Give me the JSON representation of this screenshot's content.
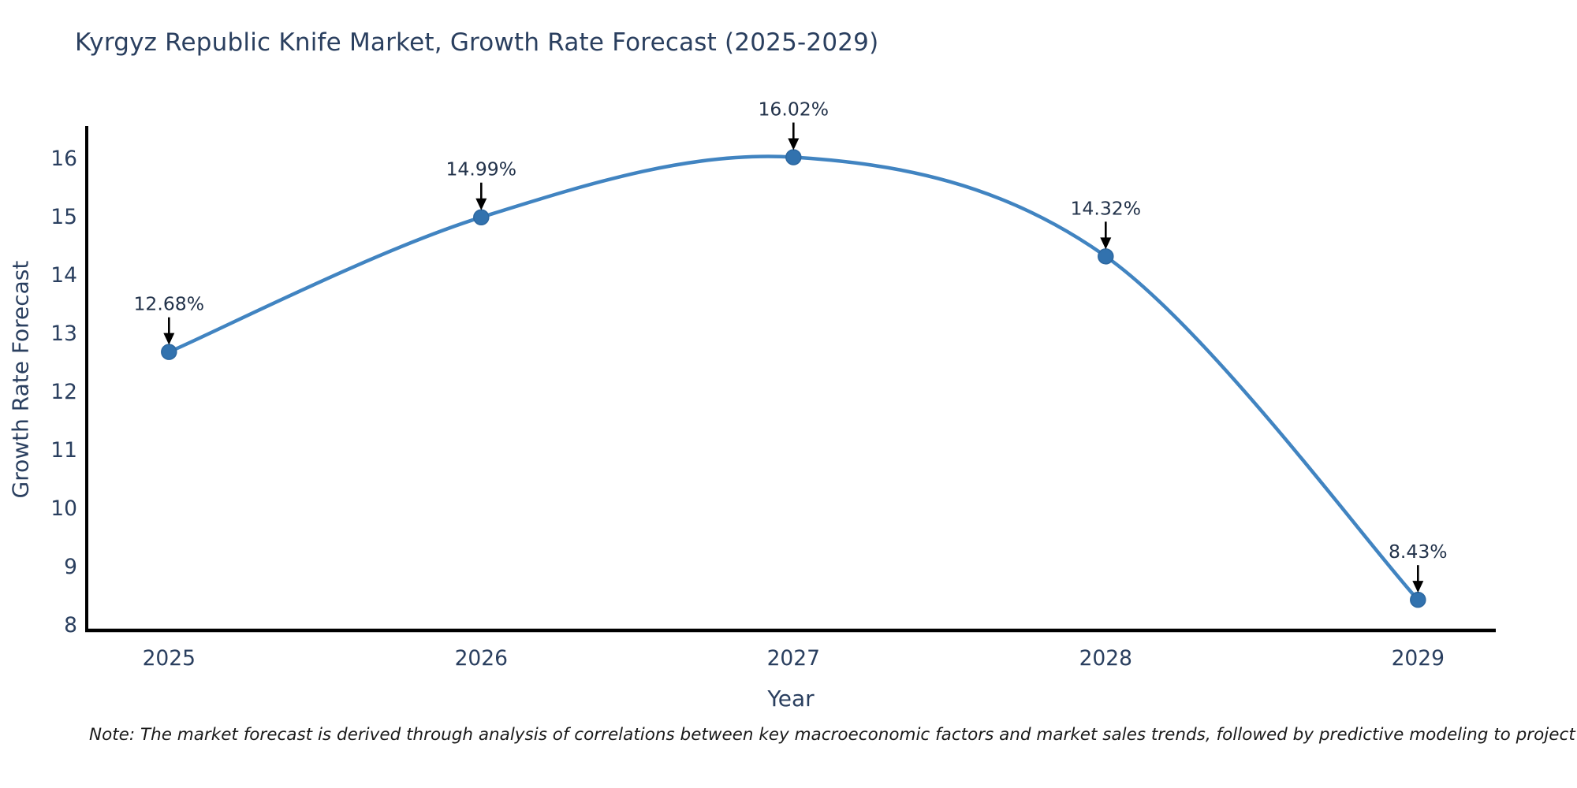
{
  "title": "Kyrgyz Republic Knife Market, Growth Rate Forecast (2025-2029)",
  "note": "Note: The market forecast is derived through analysis of correlations between key macroeconomic factors and market sales trends, followed by predictive modeling to project future sales",
  "chart_data": {
    "type": "line",
    "x": [
      2025,
      2026,
      2027,
      2028,
      2029
    ],
    "values": [
      12.68,
      14.99,
      16.02,
      14.32,
      8.43
    ],
    "point_labels": [
      "12.68%",
      "14.99%",
      "16.02%",
      "14.32%",
      "8.43%"
    ],
    "xticks": [
      "2025",
      "2026",
      "2027",
      "2028",
      "2029"
    ],
    "yticks": [
      8,
      9,
      10,
      11,
      12,
      13,
      14,
      15,
      16
    ],
    "title": "Kyrgyz Republic Knife Market, Growth Rate Forecast (2025-2029)",
    "xlabel": "Year",
    "ylabel": "Growth Rate Forecast",
    "xlim": [
      2025,
      2029
    ],
    "ylim": [
      8,
      16.65
    ],
    "grid": false,
    "legend_position": "none",
    "line_color": "#4184c1",
    "marker_color": "#3272ae",
    "marker_edge_color": "#2c67a0",
    "axis_color": "#000000",
    "tick_color": "#2a3f5f",
    "annotation_text_color": "#22324a",
    "annotation_arrow_color": "#000000"
  }
}
